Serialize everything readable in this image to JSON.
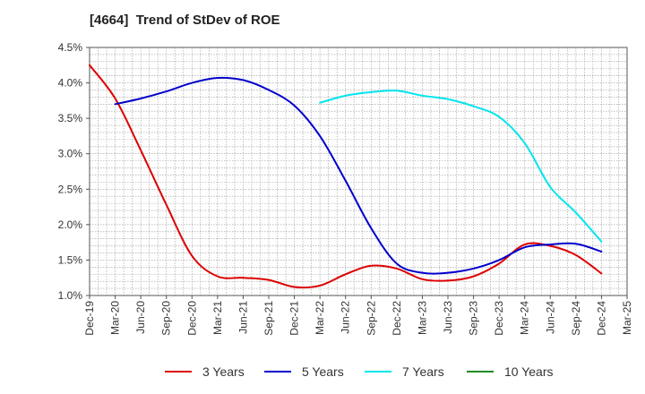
{
  "chart_data": {
    "type": "line",
    "title": "[4664]  Trend of StDev of ROE",
    "xlabel": "",
    "ylabel": "",
    "x": [
      "Dec-19",
      "Mar-20",
      "Jun-20",
      "Sep-20",
      "Dec-20",
      "Mar-21",
      "Jun-21",
      "Sep-21",
      "Dec-21",
      "Mar-22",
      "Jun-22",
      "Sep-22",
      "Dec-22",
      "Mar-23",
      "Jun-23",
      "Sep-23",
      "Dec-23",
      "Mar-24",
      "Jun-24",
      "Sep-24",
      "Dec-24",
      "Mar-25"
    ],
    "ylim": [
      1.0,
      4.5
    ],
    "yticks": [
      "1.0%",
      "1.5%",
      "2.0%",
      "2.5%",
      "3.0%",
      "3.5%",
      "4.0%",
      "4.5%"
    ],
    "grid": true,
    "legend_position": "bottom",
    "series": [
      {
        "name": "3 Years",
        "color": "#dd0000",
        "values": [
          4.25,
          3.78,
          3.05,
          2.28,
          1.56,
          1.27,
          1.25,
          1.22,
          1.12,
          1.14,
          1.3,
          1.42,
          1.38,
          1.23,
          1.21,
          1.27,
          1.45,
          1.72,
          1.7,
          1.57,
          1.31,
          null
        ]
      },
      {
        "name": "5 Years",
        "color": "#0000cc",
        "values": [
          null,
          3.7,
          3.78,
          3.88,
          4.0,
          4.07,
          4.04,
          3.9,
          3.68,
          3.25,
          2.62,
          1.95,
          1.45,
          1.32,
          1.32,
          1.38,
          1.5,
          1.68,
          1.72,
          1.73,
          1.62,
          null
        ]
      },
      {
        "name": "7 Years",
        "color": "#00e5ee",
        "values": [
          null,
          null,
          null,
          null,
          null,
          null,
          null,
          null,
          null,
          3.72,
          3.82,
          3.87,
          3.89,
          3.82,
          3.77,
          3.67,
          3.52,
          3.15,
          2.53,
          2.17,
          1.76,
          null
        ]
      },
      {
        "name": "10 Years",
        "color": "#228b22",
        "values": [
          null,
          null,
          null,
          null,
          null,
          null,
          null,
          null,
          null,
          null,
          null,
          null,
          null,
          null,
          null,
          null,
          null,
          null,
          null,
          null,
          null,
          null
        ]
      }
    ]
  }
}
